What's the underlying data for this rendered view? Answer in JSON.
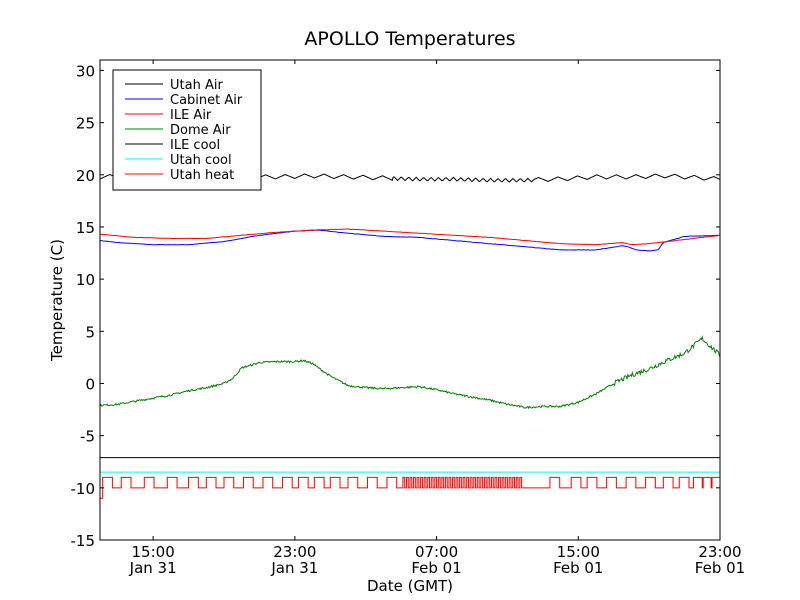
{
  "chart_data": {
    "type": "line",
    "title": "APOLLO Temperatures",
    "xlabel": "Date (GMT)",
    "ylabel": "Temperature (C)",
    "xlim_hours": [
      0,
      35
    ],
    "ylim": [
      -15,
      31
    ],
    "yticks": [
      30,
      25,
      20,
      15,
      10,
      5,
      0,
      -5,
      -10,
      -15
    ],
    "ytick_labels": [
      "30",
      "25",
      "20",
      "15",
      "10",
      "5",
      "0",
      "-5",
      "-10",
      "-15"
    ],
    "xticks": [
      {
        "hour": 3,
        "time": "15:00",
        "date": "Jan 31"
      },
      {
        "hour": 11,
        "time": "23:00",
        "date": "Jan 31"
      },
      {
        "hour": 19,
        "time": "07:00",
        "date": "Feb 01"
      },
      {
        "hour": 27,
        "time": "15:00",
        "date": "Feb 01"
      },
      {
        "hour": 35,
        "time": "23:00",
        "date": "Feb 01"
      }
    ],
    "legend_position": "upper-left",
    "series": [
      {
        "name": "Utah Air",
        "color": "#000000",
        "style": "oscillating",
        "x": [
          0,
          2,
          4,
          6,
          8,
          10,
          12,
          14,
          16,
          18,
          20,
          22,
          24,
          26,
          28,
          30,
          32,
          35
        ],
        "y": [
          19.8,
          19.9,
          19.8,
          19.8,
          19.8,
          19.8,
          19.9,
          19.8,
          19.7,
          19.6,
          19.6,
          19.5,
          19.5,
          19.6,
          19.8,
          19.8,
          19.9,
          19.6
        ]
      },
      {
        "name": "Cabinet Air",
        "color": "#0000ff",
        "style": "smooth",
        "x": [
          0,
          1,
          3,
          5,
          7,
          9,
          11,
          12.3,
          14,
          16,
          18,
          20,
          22,
          24,
          26,
          28,
          29.5,
          29.8,
          30.3,
          31,
          31.5,
          31.8,
          33,
          35
        ],
        "y": [
          13.7,
          13.5,
          13.3,
          13.3,
          13.6,
          14.2,
          14.6,
          14.7,
          14.4,
          14.1,
          14.0,
          13.7,
          13.4,
          13.1,
          12.8,
          12.8,
          13.2,
          13.1,
          12.8,
          12.7,
          12.8,
          13.5,
          14.1,
          14.2
        ]
      },
      {
        "name": "ILE Air",
        "color": "#ff0000",
        "style": "smooth",
        "x": [
          0,
          2,
          4,
          6,
          8,
          10,
          12,
          14,
          16,
          18,
          20,
          22,
          24,
          26,
          28,
          29.5,
          30,
          31,
          32,
          34,
          35
        ],
        "y": [
          14.3,
          14.0,
          13.9,
          13.9,
          14.2,
          14.5,
          14.7,
          14.8,
          14.6,
          14.4,
          14.2,
          14.0,
          13.7,
          13.4,
          13.3,
          13.5,
          13.3,
          13.4,
          13.6,
          14.0,
          14.2
        ]
      },
      {
        "name": "Dome Air",
        "color": "#008000",
        "style": "noisy",
        "x": [
          0,
          1,
          2,
          3,
          4,
          5,
          6,
          7,
          7.5,
          8,
          9,
          10,
          11,
          11.5,
          12,
          13,
          14,
          15,
          16,
          17,
          18,
          19,
          20,
          21,
          22,
          23,
          24,
          25,
          26,
          27,
          28,
          29,
          30,
          31,
          32,
          33,
          34,
          35
        ],
        "y": [
          -2.1,
          -2.0,
          -1.7,
          -1.4,
          -1.1,
          -0.7,
          -0.4,
          0.0,
          0.5,
          1.5,
          2.0,
          2.1,
          2.1,
          2.2,
          1.9,
          0.7,
          -0.2,
          -0.4,
          -0.5,
          -0.4,
          -0.3,
          -0.6,
          -1.0,
          -1.3,
          -1.6,
          -2.0,
          -2.3,
          -2.2,
          -2.2,
          -1.8,
          -1.0,
          0.0,
          0.8,
          1.4,
          2.2,
          2.9,
          4.3,
          2.7
        ]
      },
      {
        "name": "ILE cool",
        "color": "#000000",
        "style": "flat",
        "x": [
          0,
          35
        ],
        "y": [
          -7.1,
          -7.1
        ]
      },
      {
        "name": "Utah cool",
        "color": "#00ffff",
        "style": "flat",
        "x": [
          0,
          35
        ],
        "y": [
          -8.5,
          -8.5
        ]
      },
      {
        "name": "Utah heat",
        "color": "#ff0000",
        "style": "square-wave",
        "low": -10.0,
        "high": -9.0,
        "initial": -11.0,
        "pulse_starts": [
          0.15,
          1.2,
          2.5,
          3.8,
          5.0,
          6.0,
          7.0,
          8.1,
          9.2,
          10.3,
          11.2,
          12.1,
          13.0,
          14.0,
          15.1,
          16.2,
          17.1,
          17.3,
          17.5,
          17.7,
          17.9,
          18.1,
          18.3,
          18.5,
          18.7,
          18.9,
          19.1,
          19.3,
          19.5,
          19.7,
          19.9,
          20.1,
          20.3,
          20.5,
          20.7,
          20.9,
          21.1,
          21.3,
          21.5,
          21.7,
          21.9,
          22.1,
          22.3,
          22.5,
          22.7,
          22.9,
          23.1,
          23.3,
          23.5,
          23.7,
          25.4,
          26.6,
          27.5,
          28.6,
          29.7,
          30.8,
          31.8,
          32.7,
          33.5,
          34.0,
          34.5
        ],
        "pulse_width": 0.55
      }
    ]
  }
}
